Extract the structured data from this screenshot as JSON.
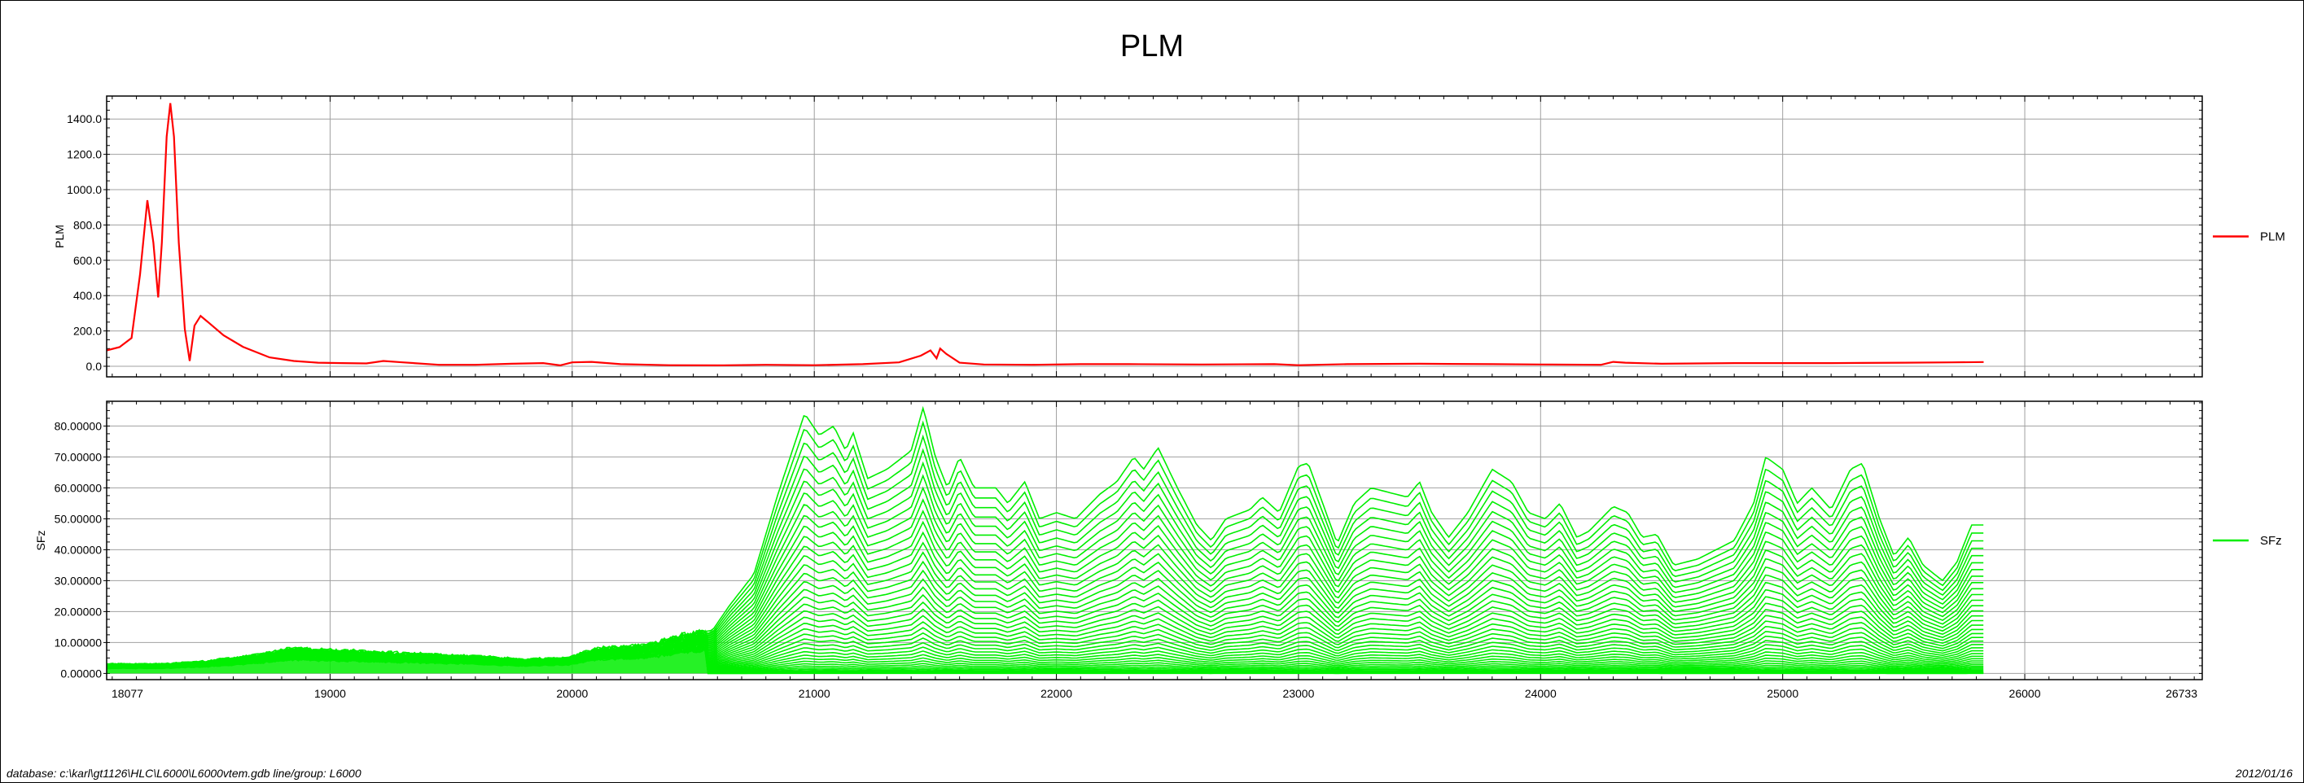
{
  "title": "PLM",
  "footer": {
    "left": "database:  c:\\karl\\gt1126\\HLC\\L6000\\L6000vtem.gdb   line/group:  L6000",
    "right": "2012/01/16"
  },
  "colors": {
    "plm": "#ff0000",
    "sfz": "#00ee00",
    "grid": "#a0a0a0",
    "axis": "#000000"
  },
  "chart_data": [
    {
      "type": "line",
      "ylabel": "PLM",
      "xlabel": "",
      "grid": true,
      "legend": "right",
      "xlim": [
        18077,
        26733
      ],
      "ylim": [
        -60,
        1530
      ],
      "x_ticks": [
        18077,
        19000,
        20000,
        21000,
        22000,
        23000,
        24000,
        25000,
        26000,
        26733
      ],
      "y_ticks": [
        "0.0",
        "200.0",
        "400.0",
        "600.0",
        "800.0",
        "1000.0",
        "1200.0",
        "1400.0"
      ],
      "series": [
        {
          "name": "PLM",
          "color": "#ff0000",
          "points": [
            [
              18077,
              90
            ],
            [
              18130,
              108
            ],
            [
              18180,
              160
            ],
            [
              18215,
              520
            ],
            [
              18245,
              940
            ],
            [
              18270,
              700
            ],
            [
              18290,
              390
            ],
            [
              18305,
              700
            ],
            [
              18325,
              1300
            ],
            [
              18340,
              1490
            ],
            [
              18355,
              1300
            ],
            [
              18375,
              700
            ],
            [
              18400,
              210
            ],
            [
              18420,
              30
            ],
            [
              18440,
              230
            ],
            [
              18465,
              285
            ],
            [
              18500,
              245
            ],
            [
              18560,
              175
            ],
            [
              18640,
              110
            ],
            [
              18750,
              50
            ],
            [
              18850,
              30
            ],
            [
              18950,
              20
            ],
            [
              19050,
              18
            ],
            [
              19150,
              16
            ],
            [
              19220,
              30
            ],
            [
              19300,
              22
            ],
            [
              19450,
              8
            ],
            [
              19600,
              8
            ],
            [
              19750,
              14
            ],
            [
              19880,
              18
            ],
            [
              19950,
              5
            ],
            [
              20000,
              22
            ],
            [
              20080,
              25
            ],
            [
              20200,
              12
            ],
            [
              20400,
              6
            ],
            [
              20600,
              5
            ],
            [
              20800,
              8
            ],
            [
              21000,
              6
            ],
            [
              21200,
              12
            ],
            [
              21350,
              22
            ],
            [
              21440,
              60
            ],
            [
              21480,
              90
            ],
            [
              21505,
              45
            ],
            [
              21520,
              100
            ],
            [
              21545,
              70
            ],
            [
              21600,
              20
            ],
            [
              21700,
              10
            ],
            [
              21900,
              8
            ],
            [
              22100,
              12
            ],
            [
              22300,
              12
            ],
            [
              22600,
              10
            ],
            [
              22900,
              12
            ],
            [
              23000,
              6
            ],
            [
              23200,
              12
            ],
            [
              23500,
              14
            ],
            [
              23800,
              12
            ],
            [
              24000,
              10
            ],
            [
              24250,
              8
            ],
            [
              24300,
              25
            ],
            [
              24350,
              20
            ],
            [
              24500,
              14
            ],
            [
              24800,
              18
            ],
            [
              25200,
              18
            ],
            [
              25500,
              20
            ],
            [
              25700,
              22
            ],
            [
              25830,
              24
            ]
          ]
        }
      ]
    },
    {
      "type": "line",
      "ylabel": "SFz",
      "xlabel": "",
      "grid": true,
      "legend": "right",
      "xlim": [
        18077,
        26733
      ],
      "ylim": [
        -2,
        88
      ],
      "x_ticks": [
        18077,
        19000,
        20000,
        21000,
        22000,
        23000,
        24000,
        25000,
        26000,
        26733
      ],
      "y_ticks": [
        "0.00000",
        "10.00000",
        "20.00000",
        "30.00000",
        "40.00000",
        "50.00000",
        "60.00000",
        "70.00000",
        "80.00000"
      ],
      "series": [
        {
          "name": "SFz",
          "color": "#00ee00",
          "channels": 40,
          "note_envelope": "top channel",
          "envelope": [
            [
              18077,
              3
            ],
            [
              18300,
              3
            ],
            [
              18500,
              4
            ],
            [
              18700,
              6
            ],
            [
              18850,
              8
            ],
            [
              19000,
              7.5
            ],
            [
              19300,
              6.5
            ],
            [
              19600,
              5.5
            ],
            [
              19800,
              4.5
            ],
            [
              19980,
              5
            ],
            [
              20100,
              8
            ],
            [
              20300,
              9
            ],
            [
              20450,
              12
            ],
            [
              20580,
              14
            ],
            [
              20650,
              22
            ],
            [
              20750,
              32
            ],
            [
              20850,
              58
            ],
            [
              20960,
              84
            ],
            [
              21020,
              77
            ],
            [
              21080,
              80
            ],
            [
              21130,
              72
            ],
            [
              21160,
              78
            ],
            [
              21220,
              63
            ],
            [
              21300,
              66
            ],
            [
              21400,
              72
            ],
            [
              21450,
              86
            ],
            [
              21500,
              70
            ],
            [
              21550,
              60
            ],
            [
              21600,
              70
            ],
            [
              21660,
              60
            ],
            [
              21750,
              60
            ],
            [
              21800,
              55
            ],
            [
              21870,
              62
            ],
            [
              21930,
              50
            ],
            [
              22000,
              52
            ],
            [
              22080,
              50
            ],
            [
              22180,
              58
            ],
            [
              22250,
              62
            ],
            [
              22320,
              70
            ],
            [
              22360,
              66
            ],
            [
              22420,
              73
            ],
            [
              22500,
              60
            ],
            [
              22580,
              48
            ],
            [
              22640,
              43
            ],
            [
              22700,
              50
            ],
            [
              22800,
              53
            ],
            [
              22850,
              57
            ],
            [
              22920,
              52
            ],
            [
              23000,
              67
            ],
            [
              23040,
              68
            ],
            [
              23100,
              55
            ],
            [
              23160,
              42
            ],
            [
              23230,
              55
            ],
            [
              23300,
              60
            ],
            [
              23450,
              57
            ],
            [
              23500,
              62
            ],
            [
              23550,
              52
            ],
            [
              23620,
              44
            ],
            [
              23700,
              52
            ],
            [
              23800,
              66
            ],
            [
              23880,
              62
            ],
            [
              23950,
              52
            ],
            [
              24020,
              50
            ],
            [
              24080,
              55
            ],
            [
              24150,
              44
            ],
            [
              24200,
              46
            ],
            [
              24300,
              54
            ],
            [
              24360,
              52
            ],
            [
              24420,
              44
            ],
            [
              24480,
              45
            ],
            [
              24550,
              35
            ],
            [
              24650,
              37
            ],
            [
              24800,
              43
            ],
            [
              24880,
              55
            ],
            [
              24930,
              70
            ],
            [
              25000,
              66
            ],
            [
              25060,
              55
            ],
            [
              25120,
              60
            ],
            [
              25200,
              53
            ],
            [
              25280,
              66
            ],
            [
              25330,
              68
            ],
            [
              25400,
              50
            ],
            [
              25460,
              38
            ],
            [
              25520,
              44
            ],
            [
              25580,
              35
            ],
            [
              25660,
              30
            ],
            [
              25720,
              36
            ],
            [
              25780,
              48
            ],
            [
              25830,
              48
            ]
          ]
        }
      ]
    }
  ]
}
